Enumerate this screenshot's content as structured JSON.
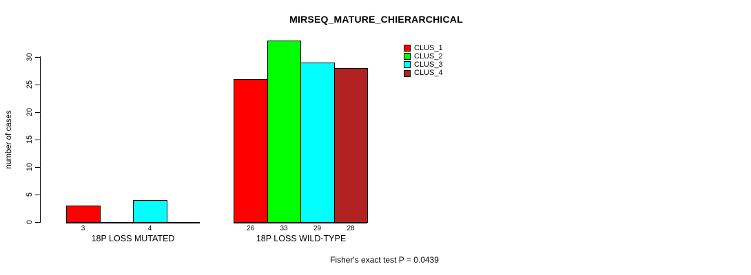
{
  "title": "MIRSEQ_MATURE_CHIERARCHICAL",
  "footer": "Fisher's exact test P = 0.0439",
  "chart_data": {
    "type": "bar",
    "title": "MIRSEQ_MATURE_CHIERARCHICAL",
    "xlabel": "",
    "ylabel": "number of cases",
    "categories": [
      "18P LOSS MUTATED",
      "18P LOSS WILD-TYPE"
    ],
    "series": [
      {
        "name": "CLUS_1",
        "color": "#FF0000",
        "values": [
          3,
          26
        ]
      },
      {
        "name": "CLUS_2",
        "color": "#00FF00",
        "values": [
          0,
          33
        ]
      },
      {
        "name": "CLUS_3",
        "color": "#00FFFF",
        "values": [
          4,
          29
        ]
      },
      {
        "name": "CLUS_4",
        "color": "#B22222",
        "values": [
          0,
          28
        ]
      }
    ],
    "bar_value_labels": [
      [
        "3",
        "",
        "4",
        ""
      ],
      [
        "26",
        "33",
        "29",
        "28"
      ]
    ],
    "yticks": [
      0,
      5,
      10,
      15,
      20,
      25,
      30
    ],
    "ylim": [
      0,
      33
    ],
    "grid": false,
    "legend_position": "top-right",
    "annotation": "Fisher's exact test P = 0.0439",
    "axis_color": "#000000",
    "background_color": "#FFFFFF"
  }
}
